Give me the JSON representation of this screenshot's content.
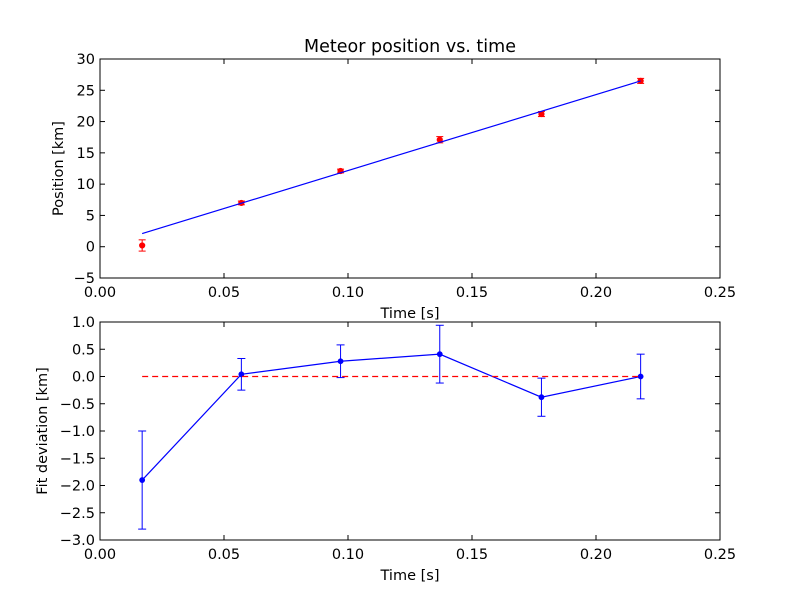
{
  "chart_data": [
    {
      "type": "scatter",
      "title": "Meteor position vs. time",
      "xlabel": "Time [s]",
      "ylabel": "Position [km]",
      "xlim": [
        0.0,
        0.25
      ],
      "ylim": [
        -5,
        30
      ],
      "xticks": [
        "0.00",
        "0.05",
        "0.10",
        "0.15",
        "0.20",
        "0.25"
      ],
      "yticks": [
        "−5",
        "0",
        "5",
        "10",
        "15",
        "20",
        "25",
        "30"
      ],
      "grid": false,
      "series": [
        {
          "kind": "points-with-errorbars",
          "color": "#ff0000",
          "x": [
            0.017,
            0.057,
            0.097,
            0.137,
            0.178,
            0.218
          ],
          "y": [
            0.2,
            7.0,
            12.1,
            17.1,
            21.2,
            26.5
          ],
          "yerr": [
            0.9,
            0.3,
            0.3,
            0.5,
            0.4,
            0.4
          ]
        },
        {
          "kind": "fit-line",
          "color": "#0000ff",
          "x": [
            0.017,
            0.218
          ],
          "y": [
            2.1,
            26.5
          ]
        }
      ]
    },
    {
      "type": "line",
      "title": "",
      "xlabel": "Time [s]",
      "ylabel": "Fit deviation [km]",
      "xlim": [
        0.0,
        0.25
      ],
      "ylim": [
        -3.0,
        1.0
      ],
      "xticks": [
        "0.00",
        "0.05",
        "0.10",
        "0.15",
        "0.20",
        "0.25"
      ],
      "yticks": [
        "−3.0",
        "−2.5",
        "−2.0",
        "−1.5",
        "−1.0",
        "−0.5",
        "0.0",
        "0.5",
        "1.0"
      ],
      "grid": false,
      "series": [
        {
          "kind": "line-with-errorbars",
          "color": "#0000ff",
          "x": [
            0.017,
            0.057,
            0.097,
            0.137,
            0.178,
            0.218
          ],
          "y": [
            -1.9,
            0.04,
            0.28,
            0.41,
            -0.38,
            0.0
          ],
          "yerr": [
            0.9,
            0.29,
            0.3,
            0.53,
            0.35,
            0.41
          ]
        },
        {
          "kind": "dashed-reference-line",
          "color": "#ff0000",
          "x": [
            0.017,
            0.218
          ],
          "y": [
            0.0,
            0.0
          ]
        }
      ]
    }
  ]
}
